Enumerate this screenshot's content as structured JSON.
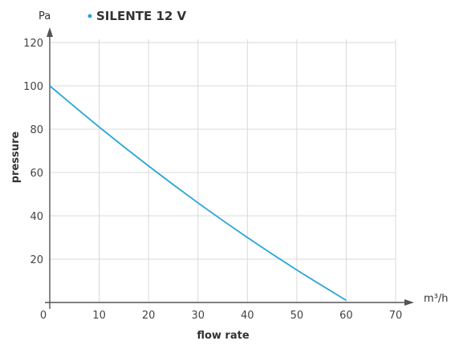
{
  "chart_data": {
    "type": "line",
    "title": "",
    "xlabel": "flow rate",
    "ylabel": "pressure",
    "x_unit": "m³/h",
    "y_unit": "Pa",
    "xlim": [
      0,
      70
    ],
    "ylim": [
      0,
      120
    ],
    "x_ticks": [
      0,
      10,
      20,
      30,
      40,
      50,
      60,
      70
    ],
    "y_ticks": [
      20,
      40,
      60,
      80,
      100,
      120
    ],
    "grid": true,
    "legend_position": "top-left",
    "series": [
      {
        "name": "SILENTE 12 V",
        "color": "#2aa5d8",
        "x": [
          0,
          10,
          20,
          30,
          40,
          50,
          60
        ],
        "y": [
          100,
          81,
          63,
          46,
          30,
          15,
          1
        ]
      }
    ]
  }
}
